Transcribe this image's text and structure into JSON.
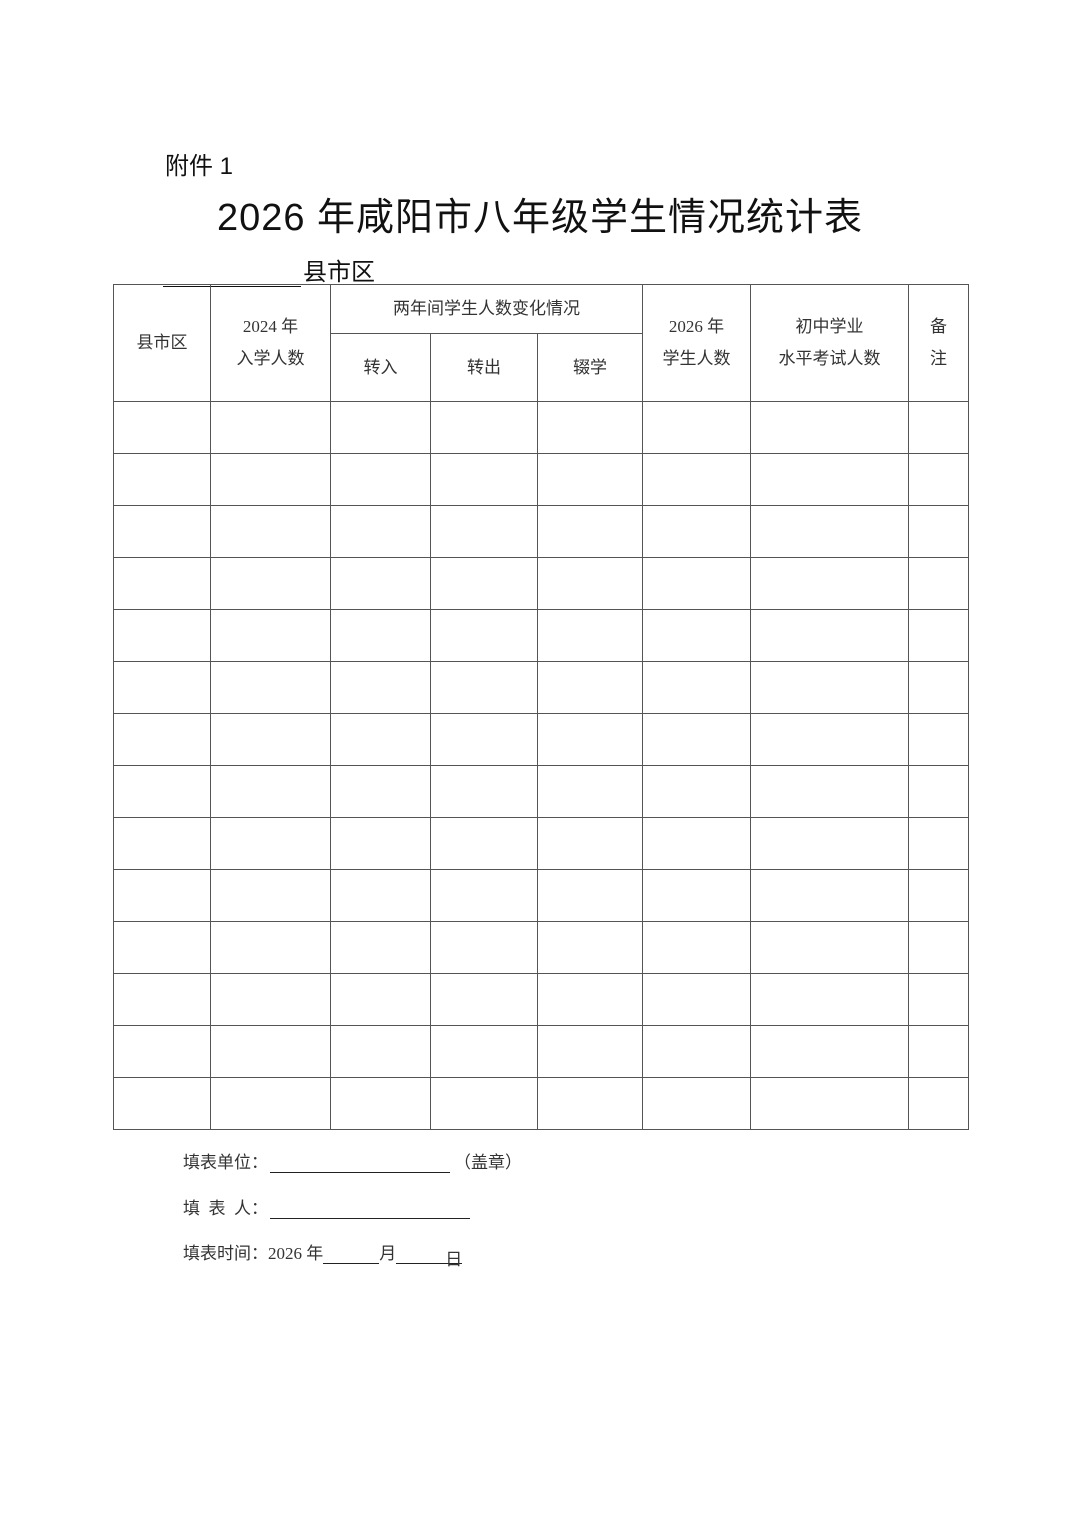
{
  "attachment_label": "附件 1",
  "title": "2026 年咸阳市八年级学生情况统计表",
  "county_suffix": "县市区",
  "table": {
    "headers": {
      "county": "县市区",
      "enroll_2024_line1": "2024 年",
      "enroll_2024_line2": "入学人数",
      "change_group": "两年间学生人数变化情况",
      "transfer_in": "转入",
      "transfer_out": "转出",
      "dropout": "辍学",
      "students_2026_line1": "2026 年",
      "students_2026_line2": "学生人数",
      "exam_line1": "初中学业",
      "exam_line2": "水平考试人数",
      "remarks_line1": "备",
      "remarks_line2": "注"
    },
    "rows": [
      [],
      [],
      [],
      [],
      [],
      [],
      [],
      [],
      [],
      [],
      [],
      [],
      [],
      []
    ]
  },
  "footer": {
    "unit_label": "填表单位：",
    "seal_label": "（盖章）",
    "filler_label": "填  表  人：",
    "date_label": "填表时间：2026 年",
    "month": "月",
    "day": "日"
  }
}
